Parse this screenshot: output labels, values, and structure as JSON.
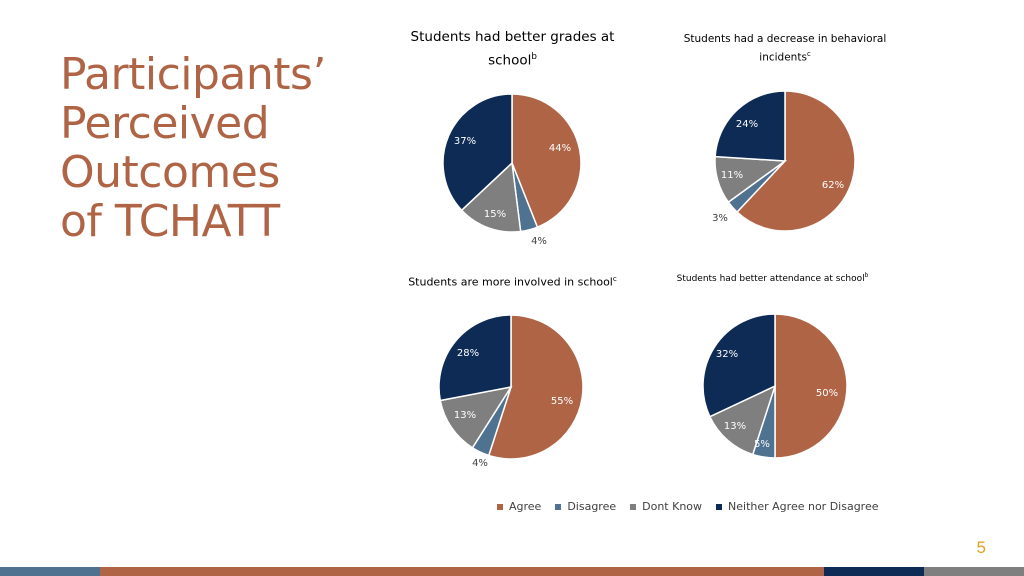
{
  "title_lines": [
    "Participants’",
    "Perceived",
    "Outcomes",
    "of TCHATT"
  ],
  "colors": {
    "agree": "#b06446",
    "disagree": "#4f7291",
    "dont_know": "#7f7f7f",
    "neither": "#0e2b55",
    "title": "#b06446",
    "page_number": "#e0a020"
  },
  "legend": [
    "Agree",
    "Disagree",
    "Dont Know",
    "Neither Agree nor Disagree"
  ],
  "page_number": "5",
  "chart_data": [
    {
      "type": "pie",
      "title": "Students had better grades at school",
      "title_superscript": "b",
      "categories": [
        "Agree",
        "Disagree",
        "Dont Know",
        "Neither Agree nor Disagree"
      ],
      "values": [
        44,
        4,
        15,
        37
      ],
      "labels": [
        "44%",
        "4%",
        "15%",
        "37%"
      ]
    },
    {
      "type": "pie",
      "title": "Students had a decrease in behavioral incidents",
      "title_superscript": "c",
      "categories": [
        "Agree",
        "Disagree",
        "Dont Know",
        "Neither Agree nor Disagree"
      ],
      "values": [
        62,
        3,
        11,
        24
      ],
      "labels": [
        "62%",
        "3%",
        "11%",
        "24%"
      ]
    },
    {
      "type": "pie",
      "title": "Students are more involved in school",
      "title_superscript": "c",
      "categories": [
        "Agree",
        "Disagree",
        "Dont Know",
        "Neither Agree nor Disagree"
      ],
      "values": [
        55,
        4,
        13,
        28
      ],
      "labels": [
        "55%",
        "4%",
        "13%",
        "28%"
      ]
    },
    {
      "type": "pie",
      "title": "Students had better attendance at school",
      "title_superscript": "b",
      "categories": [
        "Agree",
        "Disagree",
        "Dont Know",
        "Neither Agree nor Disagree"
      ],
      "values": [
        50,
        5,
        13,
        32
      ],
      "labels": [
        "50%",
        "5%",
        "13%",
        "32%"
      ]
    }
  ]
}
